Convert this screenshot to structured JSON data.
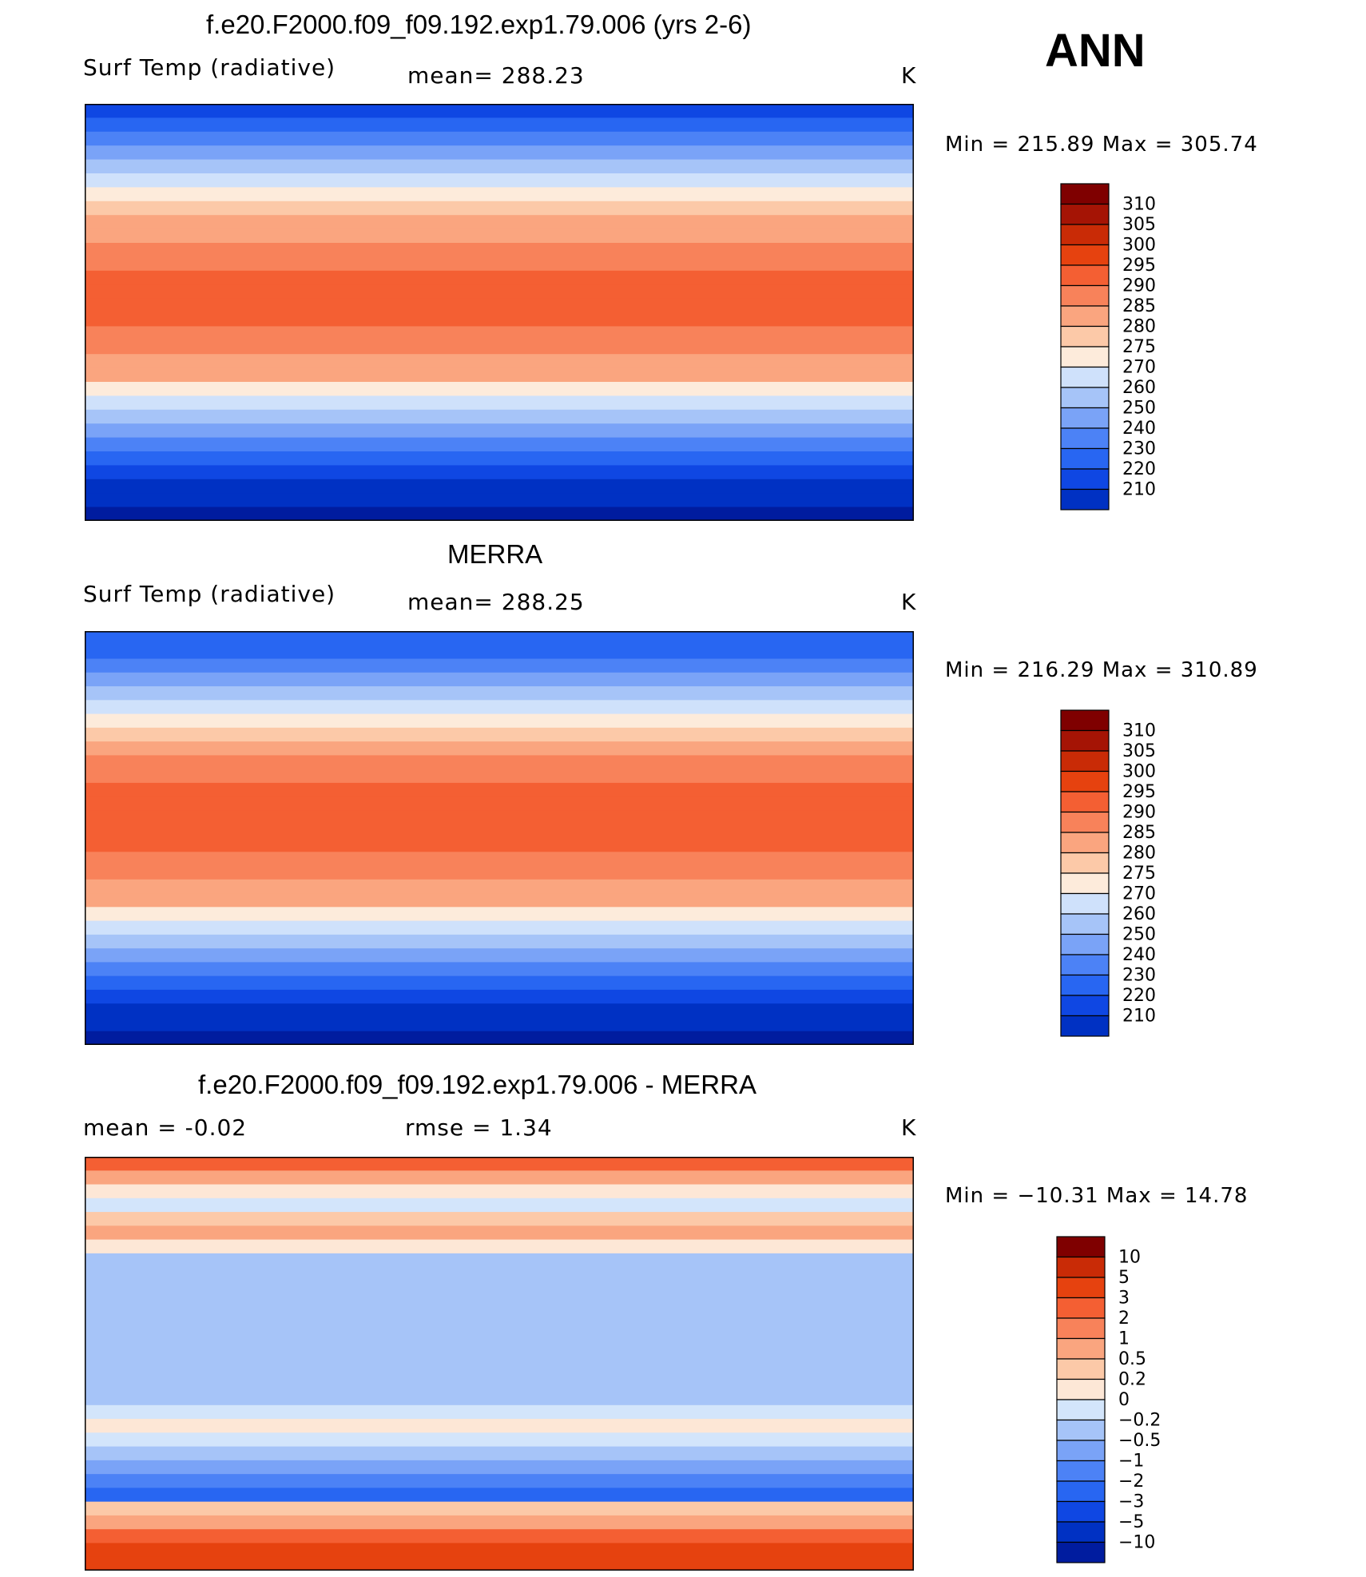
{
  "header": {
    "season": "ANN"
  },
  "units": "K",
  "colors": {
    "temperature_scale": [
      "#00007f",
      "#001c9f",
      "#0031c3",
      "#0f47e3",
      "#2866f2",
      "#4c82f6",
      "#7aa3f7",
      "#a6c4f8",
      "#cfe1fb",
      "#fdebdb",
      "#fcc9a8",
      "#faa57f",
      "#f8825a",
      "#f45f33",
      "#e6420f",
      "#c92b06",
      "#a51405",
      "#7f0000"
    ],
    "difference_scale": [
      "#00007f",
      "#001c9f",
      "#0031c3",
      "#0f47e3",
      "#2866f2",
      "#4c82f6",
      "#7aa3f7",
      "#a6c4f8",
      "#d3e5fb",
      "#fde7d6",
      "#fcc9a8",
      "#faa57f",
      "#f8825a",
      "#f45f33",
      "#e6420f",
      "#c92b06",
      "#7f0000"
    ]
  },
  "chart_data": [
    {
      "type": "heatmap",
      "panel": "model",
      "title": "f.e20.F2000.f09_f09.192.exp1.79.006 (yrs 2-6)",
      "variable": "Surf Temp (radiative)",
      "stat_text": "mean=  288.23",
      "units": "K",
      "mean": 288.23,
      "min": 215.89,
      "max": 305.74,
      "range_text": "Min  =  215.89  Max  =  305.74",
      "levels": [
        210,
        220,
        230,
        240,
        250,
        260,
        270,
        275,
        280,
        285,
        290,
        295,
        300,
        305,
        310
      ],
      "level_labels": [
        "310",
        "305",
        "300",
        "295",
        "290",
        "285",
        "280",
        "275",
        "270",
        "260",
        "250",
        "240",
        "230",
        "220",
        "210"
      ],
      "lat_profile": [
        238,
        244,
        254,
        264,
        270,
        276,
        281,
        286,
        290,
        294,
        297,
        299,
        300,
        301,
        301,
        300,
        299,
        297,
        294,
        290,
        284,
        278,
        271,
        262,
        252,
        244,
        236,
        228,
        222,
        218
      ],
      "lon_range": [
        0,
        360
      ],
      "lat_range": [
        -90,
        90
      ]
    },
    {
      "type": "heatmap",
      "panel": "observation",
      "title": "MERRA",
      "variable": "Surf Temp (radiative)",
      "stat_text": "mean=  288.25",
      "units": "K",
      "mean": 288.25,
      "min": 216.29,
      "max": 310.89,
      "range_text": "Min  =  216.29  Max  =  310.89",
      "levels": [
        210,
        220,
        230,
        240,
        250,
        260,
        270,
        275,
        280,
        285,
        290,
        295,
        300,
        305,
        310
      ],
      "level_labels": [
        "310",
        "305",
        "300",
        "295",
        "290",
        "285",
        "280",
        "275",
        "270",
        "260",
        "250",
        "240",
        "230",
        "220",
        "210"
      ],
      "lat_profile": [
        240,
        246,
        255,
        264,
        271,
        277,
        282,
        287,
        291,
        295,
        298,
        300,
        301,
        301,
        301,
        300,
        299,
        297,
        294,
        290,
        284,
        278,
        270,
        261,
        251,
        243,
        235,
        228,
        222,
        218
      ],
      "lon_range": [
        0,
        360
      ],
      "lat_range": [
        -90,
        90
      ]
    },
    {
      "type": "heatmap",
      "panel": "difference",
      "title": "f.e20.F2000.f09_f09.192.exp1.79.006 - MERRA",
      "stat_text": "mean  =     -0.02",
      "rmse_text": "rmse  =      1.34",
      "units": "K",
      "mean": -0.02,
      "rmse": 1.34,
      "min": -10.31,
      "max": 14.78,
      "range_text": "Min  =  −10.31  Max  =    14.78",
      "levels": [
        -10,
        -5,
        -3,
        -2,
        -1,
        -0.5,
        -0.2,
        0,
        0.2,
        0.5,
        1,
        2,
        3,
        5,
        10
      ],
      "level_labels": [
        "10",
        "5",
        "3",
        "2",
        "1",
        "0.5",
        "0.2",
        "0",
        "−0.2",
        "−0.5",
        "−1",
        "−2",
        "−3",
        "−5",
        "−10"
      ],
      "lat_profile": [
        3,
        1.5,
        0.3,
        0.1,
        0.6,
        1.2,
        0.4,
        -0.1,
        -0.1,
        -0.2,
        -0.1,
        -0.1,
        -0.1,
        -0.1,
        -0.1,
        -0.1,
        -0.2,
        -0.1,
        0.1,
        0.2,
        0.1,
        -0.1,
        -0.3,
        -0.6,
        -1.5,
        0.5,
        1.5,
        4,
        6,
        8
      ],
      "lon_range": [
        0,
        360
      ],
      "lat_range": [
        -90,
        90
      ]
    }
  ]
}
